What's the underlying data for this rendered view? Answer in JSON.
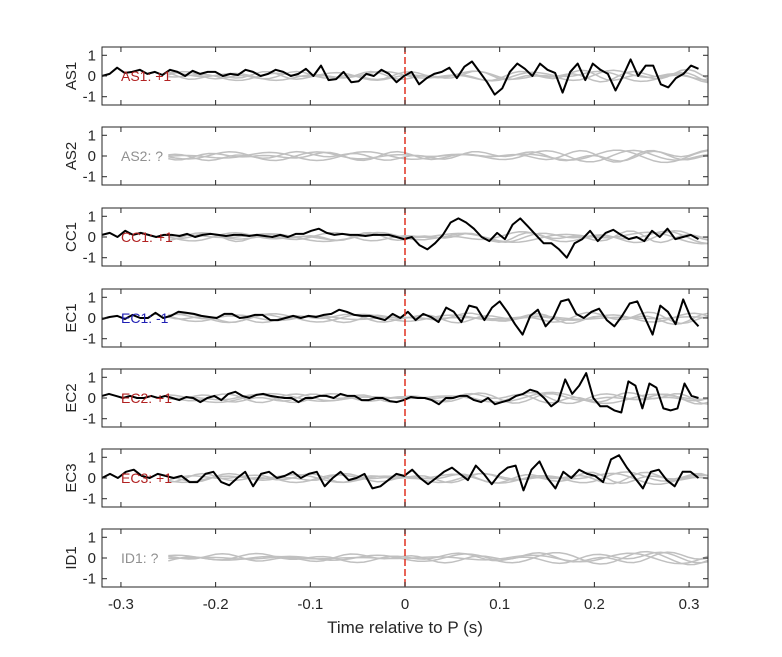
{
  "chart_data": {
    "type": "line",
    "xlabel": "Time relative to P (s)",
    "xlim": [
      -0.32,
      0.32
    ],
    "x_ticks": [
      "-0.3",
      "-0.2",
      "-0.1",
      "0",
      "0.1",
      "0.2",
      "0.3"
    ],
    "y_ticks": [
      "1",
      "0",
      "-1"
    ],
    "ylim": [
      -1.4,
      1.4
    ],
    "marker_x": 0,
    "marker_color": "#e03020",
    "colors": {
      "positive": "#b22222",
      "negative": "#1f1fb4",
      "unknown": "#909090",
      "trace": "#000000",
      "reference": "#c0c0c0"
    },
    "panels": [
      {
        "ylabel": "AS1",
        "label": "AS1: +1",
        "polarity": "positive",
        "trace": [
          0.0,
          0.1,
          0.4,
          0.15,
          0.2,
          0.3,
          0.1,
          0.2,
          0.05,
          0.3,
          0.2,
          0.0,
          0.25,
          0.1,
          0.2,
          0.2,
          0.0,
          0.1,
          0.05,
          0.3,
          0.2,
          0.0,
          0.1,
          0.3,
          0.2,
          0.0,
          0.1,
          0.35,
          0.0,
          0.5,
          -0.2,
          -0.15,
          0.2,
          -0.3,
          -0.25,
          0.1,
          0.0,
          0.3,
          0.1,
          -0.3,
          0.0,
          0.2,
          -0.4,
          -0.1,
          0.1,
          0.2,
          0.4,
          -0.1,
          0.45,
          0.7,
          0.2,
          -0.3,
          -0.9,
          -0.6,
          0.2,
          0.6,
          0.35,
          0.0,
          0.6,
          0.3,
          0.15,
          -0.8,
          0.2,
          0.6,
          -0.2,
          0.6,
          0.3,
          0.1,
          -0.7,
          0.0,
          0.8,
          0.0,
          0.5,
          0.5,
          -0.4,
          -0.55,
          -0.1,
          0.1,
          0.5,
          0.35
        ]
      },
      {
        "ylabel": "AS2",
        "label": "AS2: ?",
        "polarity": "unknown",
        "trace": []
      },
      {
        "ylabel": "CC1",
        "label": "CC1: +1",
        "polarity": "positive",
        "trace": [
          0.1,
          0.2,
          0.0,
          0.3,
          0.1,
          0.2,
          0.1,
          0.0,
          0.1,
          0.1,
          0.05,
          0.15,
          0.0,
          0.1,
          0.15,
          0.1,
          0.05,
          0.1,
          0.1,
          0.05,
          0.1,
          0.05,
          0.0,
          0.1,
          0.0,
          0.15,
          0.15,
          0.3,
          0.4,
          0.2,
          0.1,
          0.15,
          0.1,
          0.1,
          0.05,
          0.1,
          0.1,
          0.1,
          0.0,
          -0.1,
          0.0,
          -0.4,
          -0.6,
          -0.3,
          0.1,
          0.7,
          0.9,
          0.7,
          0.4,
          0.0,
          -0.2,
          0.2,
          -0.1,
          0.6,
          0.9,
          0.5,
          0.1,
          -0.3,
          -0.3,
          -0.6,
          -1.0,
          -0.3,
          -0.1,
          0.3,
          -0.2,
          0.2,
          0.35,
          0.1,
          -0.1,
          0.0,
          -0.2,
          0.3,
          0.0,
          0.4,
          -0.1,
          0.0,
          0.1,
          -0.1
        ]
      },
      {
        "ylabel": "EC1",
        "label": "EC1: -1",
        "polarity": "negative",
        "trace": [
          -0.05,
          0.05,
          0.1,
          -0.05,
          0.15,
          0.0,
          0.0,
          0.25,
          0.0,
          0.1,
          0.3,
          0.25,
          0.2,
          0.1,
          0.05,
          0.0,
          0.2,
          0.2,
          0.0,
          0.05,
          0.15,
          0.15,
          -0.1,
          -0.1,
          0.0,
          0.1,
          0.0,
          0.1,
          0.05,
          0.15,
          0.2,
          0.4,
          0.3,
          0.15,
          0.1,
          0.1,
          0.0,
          -0.1,
          0.2,
          0.0,
          0.3,
          -0.1,
          0.2,
          0.05,
          -0.2,
          0.5,
          0.3,
          -0.2,
          0.6,
          0.5,
          -0.1,
          0.5,
          0.8,
          0.3,
          -0.3,
          -0.8,
          0.1,
          0.4,
          -0.4,
          0.0,
          0.8,
          0.9,
          0.2,
          0.0,
          0.3,
          0.45,
          -0.1,
          -0.4,
          0.1,
          0.7,
          0.8,
          0.0,
          -0.8,
          0.6,
          0.3,
          -0.3,
          0.9,
          0.0,
          -0.4
        ]
      },
      {
        "ylabel": "EC2",
        "label": "EC2: +1",
        "polarity": "positive",
        "trace": [
          0.1,
          0.2,
          0.1,
          0.0,
          0.1,
          0.0,
          0.0,
          0.1,
          0.0,
          0.1,
          0.0,
          -0.1,
          0.05,
          0.0,
          -0.2,
          0.0,
          0.1,
          -0.1,
          0.2,
          0.3,
          0.1,
          0.0,
          0.15,
          0.2,
          0.1,
          0.05,
          0.0,
          0.0,
          -0.2,
          0.0,
          0.0,
          0.1,
          0.1,
          0.0,
          0.2,
          0.1,
          0.1,
          -0.1,
          -0.1,
          0.0,
          0.0,
          -0.15,
          -0.2,
          -0.1,
          0.05,
          0.0,
          0.0,
          -0.1,
          -0.3,
          0.0,
          0.0,
          0.1,
          0.1,
          -0.1,
          -0.2,
          0.0,
          -0.3,
          -0.2,
          -0.1,
          0.1,
          0.2,
          0.4,
          0.3,
          0.0,
          -0.4,
          -0.15,
          0.9,
          0.2,
          0.6,
          1.2,
          0.0,
          -0.4,
          -0.4,
          -0.6,
          -0.7,
          0.8,
          0.6,
          -0.5,
          0.7,
          0.5,
          -0.5,
          -0.6,
          -0.5,
          0.7,
          0.1,
          0.0
        ]
      },
      {
        "ylabel": "EC3",
        "label": "EC3: +1",
        "polarity": "positive",
        "trace": [
          0.0,
          0.2,
          0.0,
          0.3,
          0.4,
          0.1,
          0.0,
          0.2,
          0.1,
          0.0,
          0.1,
          -0.2,
          -0.2,
          0.2,
          0.3,
          -0.2,
          -0.35,
          0.0,
          0.3,
          -0.4,
          0.2,
          0.3,
          0.0,
          0.1,
          0.3,
          0.0,
          0.2,
          0.3,
          -0.4,
          0.0,
          0.3,
          -0.1,
          0.0,
          0.2,
          -0.5,
          -0.4,
          -0.1,
          0.2,
          0.1,
          0.4,
          0.0,
          -0.3,
          0.0,
          0.3,
          0.5,
          0.2,
          -0.1,
          0.6,
          0.2,
          -0.3,
          0.2,
          0.5,
          0.6,
          -0.6,
          0.4,
          0.8,
          0.0,
          -0.5,
          0.3,
          0.0,
          0.4,
          0.2,
          0.1,
          -0.2,
          0.9,
          1.1,
          0.5,
          0.0,
          -0.5,
          0.3,
          0.4,
          -0.1,
          -0.4,
          0.3,
          0.3,
          0.0
        ]
      },
      {
        "ylabel": "ID1",
        "label": "ID1: ?",
        "polarity": "unknown",
        "trace": []
      }
    ]
  }
}
